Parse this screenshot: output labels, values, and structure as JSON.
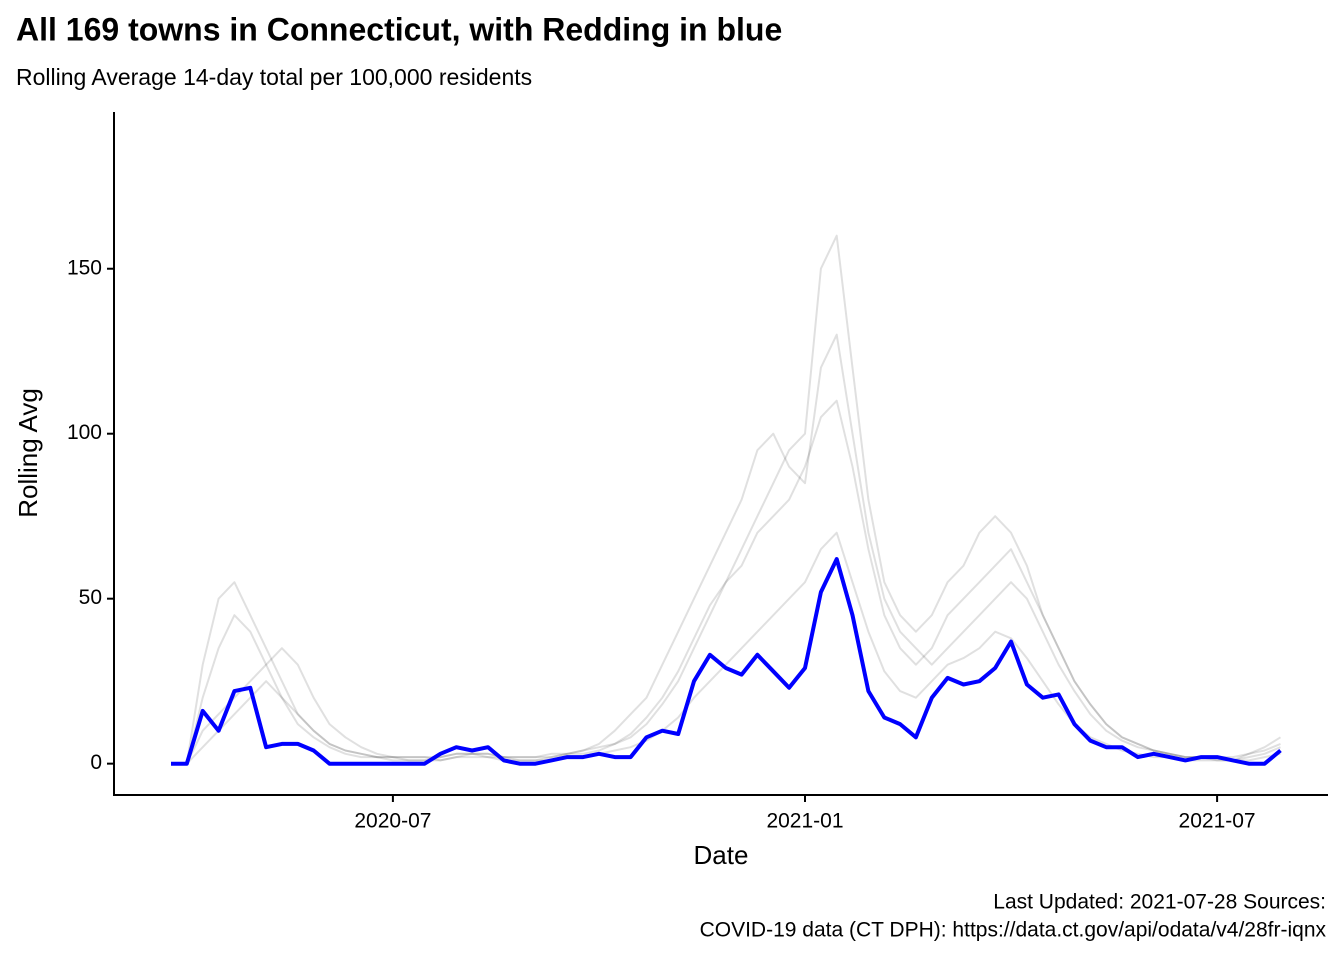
{
  "chart_data": {
    "type": "line",
    "title": "All 169 towns in Connecticut, with Redding in blue",
    "subtitle": "Rolling Average 14-day total per 100,000 residents",
    "x_label": "Date",
    "y_label": "Rolling Avg",
    "caption": [
      "Last Updated: 2021-07-28  Sources:",
      "COVID-19 data (CT DPH): https://data.ct.gov/api/odata/v4/28fr-iqnx"
    ],
    "categories": [
      null,
      null,
      null,
      null,
      null,
      null,
      null,
      null,
      null,
      null,
      null,
      null,
      null,
      null,
      "2020-07",
      null,
      null,
      null,
      null,
      null,
      null,
      null,
      null,
      null,
      null,
      null,
      null,
      null,
      null,
      null,
      null,
      null,
      null,
      null,
      null,
      null,
      null,
      null,
      null,
      null,
      "2021-01",
      null,
      null,
      null,
      null,
      null,
      null,
      null,
      null,
      null,
      null,
      null,
      null,
      null,
      null,
      null,
      null,
      null,
      null,
      null,
      null,
      null,
      null,
      null,
      null,
      null,
      "2021-07",
      null,
      null,
      null,
      null
    ],
    "ylim": [
      -9.5,
      197.5
    ],
    "yticks": [
      0,
      50,
      100,
      150
    ],
    "grid": false,
    "series": [
      {
        "color": "#000000",
        "opacity": 0.12,
        "values": [
          0,
          0,
          20,
          35,
          45,
          40,
          30,
          20,
          12,
          8,
          5,
          3,
          2,
          2,
          1,
          1,
          1,
          2,
          3,
          3,
          3,
          2,
          2,
          2,
          3,
          3,
          4,
          5,
          6,
          8,
          12,
          18,
          25,
          35,
          45,
          55,
          60,
          70,
          75,
          80,
          90,
          105,
          110,
          90,
          65,
          45,
          35,
          30,
          35,
          45,
          50,
          55,
          60,
          65,
          55,
          45,
          35,
          25,
          18,
          12,
          8,
          6,
          4,
          3,
          2,
          2,
          2,
          2,
          3,
          4,
          6
        ]
      },
      {
        "color": "#000000",
        "opacity": 0.12,
        "values": [
          0,
          0,
          10,
          15,
          20,
          25,
          30,
          35,
          30,
          20,
          12,
          8,
          5,
          3,
          2,
          2,
          2,
          1,
          2,
          3,
          2,
          2,
          1,
          1,
          2,
          3,
          4,
          6,
          10,
          15,
          20,
          30,
          40,
          50,
          60,
          70,
          80,
          95,
          100,
          90,
          85,
          120,
          130,
          100,
          70,
          50,
          40,
          35,
          30,
          35,
          40,
          45,
          50,
          55,
          50,
          40,
          30,
          22,
          15,
          10,
          7,
          5,
          4,
          3,
          2,
          2,
          1,
          1,
          2,
          3,
          5
        ]
      },
      {
        "color": "#000000",
        "opacity": 0.12,
        "values": [
          0,
          0,
          30,
          50,
          55,
          45,
          35,
          25,
          15,
          10,
          6,
          4,
          3,
          2,
          2,
          1,
          1,
          1,
          2,
          2,
          2,
          1,
          1,
          1,
          1,
          2,
          2,
          3,
          4,
          5,
          7,
          10,
          14,
          20,
          25,
          30,
          35,
          40,
          45,
          50,
          55,
          65,
          70,
          55,
          40,
          28,
          22,
          20,
          25,
          30,
          32,
          35,
          40,
          38,
          32,
          25,
          18,
          12,
          8,
          6,
          4,
          3,
          2,
          2,
          1,
          1,
          1,
          1,
          1,
          2,
          3
        ]
      },
      {
        "color": "#000000",
        "opacity": 0.12,
        "values": [
          0,
          0,
          5,
          10,
          15,
          20,
          25,
          20,
          15,
          10,
          6,
          4,
          3,
          2,
          2,
          2,
          2,
          2,
          3,
          3,
          3,
          2,
          2,
          2,
          2,
          3,
          3,
          4,
          6,
          9,
          14,
          20,
          28,
          38,
          48,
          55,
          65,
          75,
          85,
          95,
          100,
          150,
          160,
          120,
          80,
          55,
          45,
          40,
          45,
          55,
          60,
          70,
          75,
          70,
          60,
          45,
          35,
          25,
          18,
          12,
          8,
          6,
          4,
          3,
          2,
          2,
          2,
          1,
          3,
          5,
          8
        ]
      },
      {
        "color": "#0000ff",
        "opacity": 1,
        "values": [
          0,
          0,
          16,
          10,
          22,
          23,
          5,
          6,
          6,
          4,
          0,
          0,
          0,
          0,
          0,
          0,
          0,
          3,
          5,
          4,
          5,
          1,
          0,
          0,
          1,
          2,
          2,
          3,
          2,
          2,
          8,
          10,
          9,
          25,
          33,
          29,
          27,
          33,
          28,
          23,
          29,
          52,
          62,
          45,
          22,
          14,
          12,
          8,
          20,
          26,
          24,
          25,
          29,
          37,
          24,
          20,
          21,
          12,
          7,
          5,
          5,
          2,
          3,
          2,
          1,
          2,
          2,
          1,
          0,
          0,
          4
        ]
      }
    ]
  }
}
